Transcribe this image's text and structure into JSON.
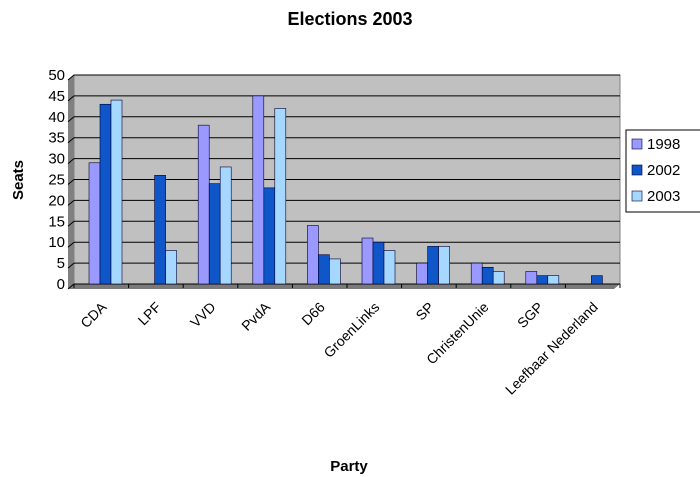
{
  "chart_data": {
    "type": "bar",
    "title": "Elections 2003",
    "xlabel": "Party",
    "ylabel": "Seats",
    "ylim": [
      0,
      50
    ],
    "ytick_step": 5,
    "grid": true,
    "legend_position": "right",
    "categories": [
      "CDA",
      "LPF",
      "VVD",
      "PvdA",
      "D66",
      "GroenLinks",
      "SP",
      "ChristenUnie",
      "SGP",
      "Leefbaar Nederland"
    ],
    "series": [
      {
        "name": "1998",
        "color": "#9999FF",
        "values": [
          29,
          0,
          38,
          45,
          14,
          11,
          5,
          5,
          3,
          0
        ]
      },
      {
        "name": "2002",
        "color": "#0F56C8",
        "values": [
          43,
          26,
          24,
          23,
          7,
          10,
          9,
          4,
          2,
          2
        ]
      },
      {
        "name": "2003",
        "color": "#A6D8FF",
        "values": [
          44,
          8,
          28,
          42,
          6,
          8,
          9,
          3,
          2,
          0
        ]
      }
    ],
    "plot_background": "#C0C0C0"
  }
}
